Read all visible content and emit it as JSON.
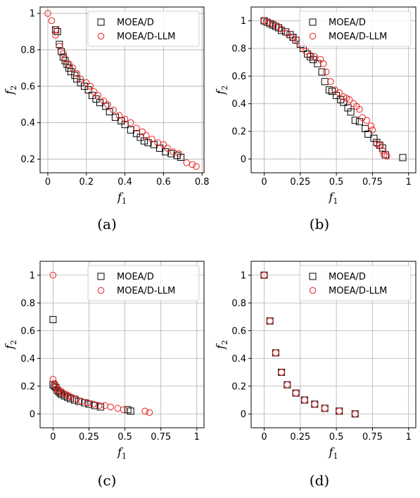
{
  "legend": {
    "series_a": "MOEA/D",
    "series_b": "MOEA/D-LLM"
  },
  "colors": {
    "series_a": "#000000",
    "series_b": "#e8201f",
    "grid": "#b0b0b0"
  },
  "chart_data": [
    {
      "caption": "(a)",
      "type": "scatter",
      "xlabel": "f",
      "xlabel_sub": "1",
      "ylabel": "f",
      "ylabel_sub": "2",
      "xlim": [
        -0.04,
        0.81
      ],
      "ylim": [
        0.125,
        1.035
      ],
      "xticks": [
        0,
        0.2,
        0.4,
        0.6,
        0.8
      ],
      "xtick_labels": [
        "0",
        "0.2",
        "0.4",
        "0.6",
        "0.8"
      ],
      "yticks": [
        0.2,
        0.4,
        0.6,
        0.8,
        1
      ],
      "ytick_labels": [
        "0.2",
        "0.4",
        "0.6",
        "0.8",
        "1"
      ],
      "grid": true,
      "legend_position": "top-right",
      "series": [
        {
          "name": "MOEA/D",
          "marker": "square",
          "x": [
            0.04,
            0.05,
            0.06,
            0.07,
            0.08,
            0.09,
            0.1,
            0.11,
            0.12,
            0.14,
            0.15,
            0.17,
            0.19,
            0.21,
            0.23,
            0.25,
            0.27,
            0.3,
            0.32,
            0.35,
            0.38,
            0.4,
            0.43,
            0.46,
            0.48,
            0.5,
            0.52,
            0.55,
            0.58,
            0.61,
            0.64,
            0.67,
            0.69
          ],
          "y": [
            0.91,
            0.9,
            0.83,
            0.79,
            0.76,
            0.74,
            0.72,
            0.7,
            0.68,
            0.66,
            0.64,
            0.62,
            0.6,
            0.58,
            0.55,
            0.53,
            0.51,
            0.49,
            0.46,
            0.43,
            0.41,
            0.39,
            0.36,
            0.34,
            0.32,
            0.3,
            0.29,
            0.28,
            0.26,
            0.24,
            0.23,
            0.22,
            0.21
          ]
        },
        {
          "name": "MOEA/D-LLM",
          "marker": "circle",
          "x": [
            0.0,
            0.02,
            0.04,
            0.04,
            0.06,
            0.08,
            0.09,
            0.11,
            0.13,
            0.15,
            0.17,
            0.2,
            0.22,
            0.24,
            0.26,
            0.29,
            0.31,
            0.34,
            0.37,
            0.4,
            0.43,
            0.46,
            0.49,
            0.51,
            0.54,
            0.57,
            0.6,
            0.62,
            0.65,
            0.68,
            0.72,
            0.75,
            0.77
          ],
          "y": [
            1.0,
            0.96,
            0.91,
            0.88,
            0.82,
            0.78,
            0.75,
            0.72,
            0.7,
            0.67,
            0.64,
            0.62,
            0.6,
            0.57,
            0.55,
            0.52,
            0.5,
            0.47,
            0.44,
            0.42,
            0.4,
            0.37,
            0.35,
            0.33,
            0.31,
            0.29,
            0.28,
            0.26,
            0.24,
            0.23,
            0.18,
            0.17,
            0.16
          ]
        }
      ]
    },
    {
      "caption": "(b)",
      "type": "scatter",
      "xlabel": "f",
      "xlabel_sub": "1",
      "ylabel": "f",
      "ylabel_sub": "2",
      "xlim": [
        -0.09,
        1.05
      ],
      "ylim": [
        -0.1,
        1.1
      ],
      "xticks": [
        0,
        0.25,
        0.5,
        0.75,
        1
      ],
      "xtick_labels": [
        "0",
        "0.25",
        "0.5",
        "0.75",
        "1"
      ],
      "yticks": [
        0,
        0.2,
        0.4,
        0.6,
        0.8,
        1
      ],
      "ytick_labels": [
        "0",
        "0.2",
        "0.4",
        "0.6",
        "0.8",
        "1"
      ],
      "grid": true,
      "legend_position": "top-right",
      "series": [
        {
          "name": "MOEA/D",
          "marker": "square",
          "x": [
            0.0,
            0.02,
            0.04,
            0.06,
            0.08,
            0.1,
            0.12,
            0.15,
            0.18,
            0.2,
            0.22,
            0.25,
            0.27,
            0.3,
            0.32,
            0.34,
            0.37,
            0.4,
            0.42,
            0.45,
            0.47,
            0.5,
            0.53,
            0.55,
            0.58,
            0.6,
            0.63,
            0.66,
            0.7,
            0.72,
            0.76,
            0.78,
            0.8,
            0.82,
            0.84,
            0.96
          ],
          "y": [
            1.0,
            0.99,
            0.98,
            0.97,
            0.96,
            0.95,
            0.93,
            0.92,
            0.9,
            0.88,
            0.86,
            0.83,
            0.8,
            0.76,
            0.74,
            0.72,
            0.69,
            0.63,
            0.56,
            0.5,
            0.49,
            0.46,
            0.43,
            0.41,
            0.37,
            0.34,
            0.28,
            0.27,
            0.22,
            0.18,
            0.15,
            0.12,
            0.1,
            0.08,
            0.03,
            0.01
          ]
        },
        {
          "name": "MOEA/D-LLM",
          "marker": "circle",
          "x": [
            0.0,
            0.03,
            0.06,
            0.09,
            0.12,
            0.16,
            0.2,
            0.23,
            0.26,
            0.29,
            0.32,
            0.35,
            0.39,
            0.41,
            0.43,
            0.46,
            0.49,
            0.52,
            0.55,
            0.57,
            0.59,
            0.62,
            0.64,
            0.66,
            0.68,
            0.71,
            0.74,
            0.75,
            0.78,
            0.8,
            0.82,
            0.83,
            0.85
          ],
          "y": [
            1.0,
            0.99,
            0.98,
            0.96,
            0.94,
            0.91,
            0.88,
            0.86,
            0.82,
            0.78,
            0.75,
            0.74,
            0.72,
            0.69,
            0.63,
            0.56,
            0.5,
            0.48,
            0.45,
            0.44,
            0.43,
            0.4,
            0.38,
            0.36,
            0.3,
            0.28,
            0.24,
            0.21,
            0.11,
            0.1,
            0.06,
            0.03,
            0.02
          ]
        }
      ]
    },
    {
      "caption": "(c)",
      "type": "scatter",
      "xlabel": "f",
      "xlabel_sub": "1",
      "ylabel": "f",
      "ylabel_sub": "2",
      "xlim": [
        -0.09,
        1.05
      ],
      "ylim": [
        -0.1,
        1.1
      ],
      "xticks": [
        0,
        0.25,
        0.5,
        0.75,
        1
      ],
      "xtick_labels": [
        "0",
        "0.25",
        "0.5",
        "0.75",
        "1"
      ],
      "yticks": [
        0,
        0.2,
        0.4,
        0.6,
        0.8,
        1
      ],
      "ytick_labels": [
        "0",
        "0.2",
        "0.4",
        "0.6",
        "0.8",
        "1"
      ],
      "grid": true,
      "legend_position": "top-right",
      "series": [
        {
          "name": "MOEA/D",
          "marker": "square",
          "x": [
            0.0,
            0.0,
            0.01,
            0.02,
            0.03,
            0.04,
            0.05,
            0.06,
            0.08,
            0.1,
            0.12,
            0.15,
            0.18,
            0.22,
            0.25,
            0.29,
            0.33,
            0.52,
            0.54
          ],
          "y": [
            0.68,
            0.21,
            0.2,
            0.19,
            0.17,
            0.16,
            0.15,
            0.14,
            0.13,
            0.12,
            0.11,
            0.1,
            0.09,
            0.08,
            0.07,
            0.06,
            0.05,
            0.03,
            0.02
          ]
        },
        {
          "name": "MOEA/D-LLM",
          "marker": "circle",
          "x": [
            0.0,
            0.0,
            0.01,
            0.02,
            0.03,
            0.04,
            0.06,
            0.07,
            0.09,
            0.11,
            0.13,
            0.16,
            0.2,
            0.24,
            0.28,
            0.32,
            0.36,
            0.4,
            0.45,
            0.49,
            0.64,
            0.67
          ],
          "y": [
            1.0,
            0.25,
            0.22,
            0.2,
            0.18,
            0.17,
            0.16,
            0.15,
            0.14,
            0.13,
            0.12,
            0.11,
            0.09,
            0.08,
            0.07,
            0.06,
            0.06,
            0.05,
            0.04,
            0.03,
            0.02,
            0.01
          ]
        }
      ]
    },
    {
      "caption": "(d)",
      "type": "scatter",
      "xlabel": "f",
      "xlabel_sub": "1",
      "ylabel": "f",
      "ylabel_sub": "2",
      "xlim": [
        -0.09,
        1.05
      ],
      "ylim": [
        -0.1,
        1.1
      ],
      "xticks": [
        0,
        0.25,
        0.5,
        0.75,
        1
      ],
      "xtick_labels": [
        "0",
        "0.25",
        "0.5",
        "0.75",
        "1"
      ],
      "yticks": [
        0,
        0.2,
        0.4,
        0.6,
        0.8,
        1
      ],
      "ytick_labels": [
        "0",
        "0.2",
        "0.4",
        "0.6",
        "0.8",
        "1"
      ],
      "grid": true,
      "legend_position": "top-right",
      "series": [
        {
          "name": "MOEA/D",
          "marker": "square",
          "x": [
            0.0,
            0.04,
            0.08,
            0.12,
            0.16,
            0.22,
            0.28,
            0.35,
            0.42,
            0.52,
            0.63
          ],
          "y": [
            1.0,
            0.67,
            0.44,
            0.3,
            0.21,
            0.15,
            0.1,
            0.07,
            0.04,
            0.02,
            0.0
          ]
        },
        {
          "name": "MOEA/D-LLM",
          "marker": "circle",
          "x": [
            0.0,
            0.04,
            0.08,
            0.12,
            0.16,
            0.22,
            0.28,
            0.35,
            0.42,
            0.52,
            0.63
          ],
          "y": [
            1.0,
            0.67,
            0.44,
            0.3,
            0.21,
            0.15,
            0.1,
            0.07,
            0.04,
            0.02,
            0.0
          ]
        }
      ]
    }
  ]
}
